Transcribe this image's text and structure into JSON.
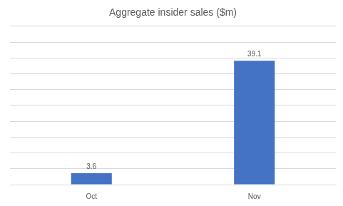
{
  "chart_data": {
    "type": "bar",
    "title": "Aggregate insider sales ($m)",
    "categories": [
      "Oct",
      "Nov"
    ],
    "values": [
      3.6,
      39.1
    ],
    "color": "#4472c4",
    "ylim": [
      0,
      50
    ],
    "yticks": [
      0,
      5,
      10,
      15,
      20,
      25,
      30,
      35,
      40,
      45,
      50
    ],
    "grid": true,
    "data_labels": true,
    "tick_labels": "x"
  }
}
